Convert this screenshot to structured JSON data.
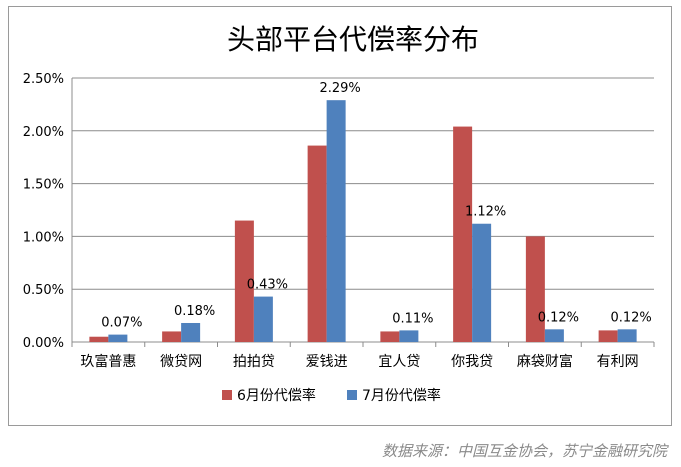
{
  "chart_data": {
    "type": "bar",
    "title": "头部平台代偿率分布",
    "categories": [
      "玖富普惠",
      "微贷网",
      "拍拍贷",
      "爱钱进",
      "宜人贷",
      "你我贷",
      "麻袋财富",
      "有利网"
    ],
    "y_ticks": [
      "0.00%",
      "0.50%",
      "1.00%",
      "1.50%",
      "2.00%",
      "2.50%"
    ],
    "ylim": [
      0,
      2.5
    ],
    "unit": "%",
    "grid": true,
    "legend_position": "bottom",
    "series": [
      {
        "name": "6月份代偿率",
        "color": "#c0504d",
        "values": [
          0.05,
          0.1,
          1.15,
          1.86,
          0.1,
          2.04,
          1.0,
          0.11
        ],
        "labels": [
          "",
          "",
          "",
          "",
          "",
          "",
          "",
          ""
        ]
      },
      {
        "name": "7月份代偿率",
        "color": "#4f81bd",
        "values": [
          0.07,
          0.18,
          0.43,
          2.29,
          0.11,
          1.12,
          0.12,
          0.12
        ],
        "labels": [
          "0.07%",
          "0.18%",
          "0.43%",
          "2.29%",
          "0.11%",
          "1.12%",
          "0.12%",
          "0.12%"
        ]
      }
    ]
  },
  "source_note": "数据来源：中国互金协会，苏宁金融研究院"
}
